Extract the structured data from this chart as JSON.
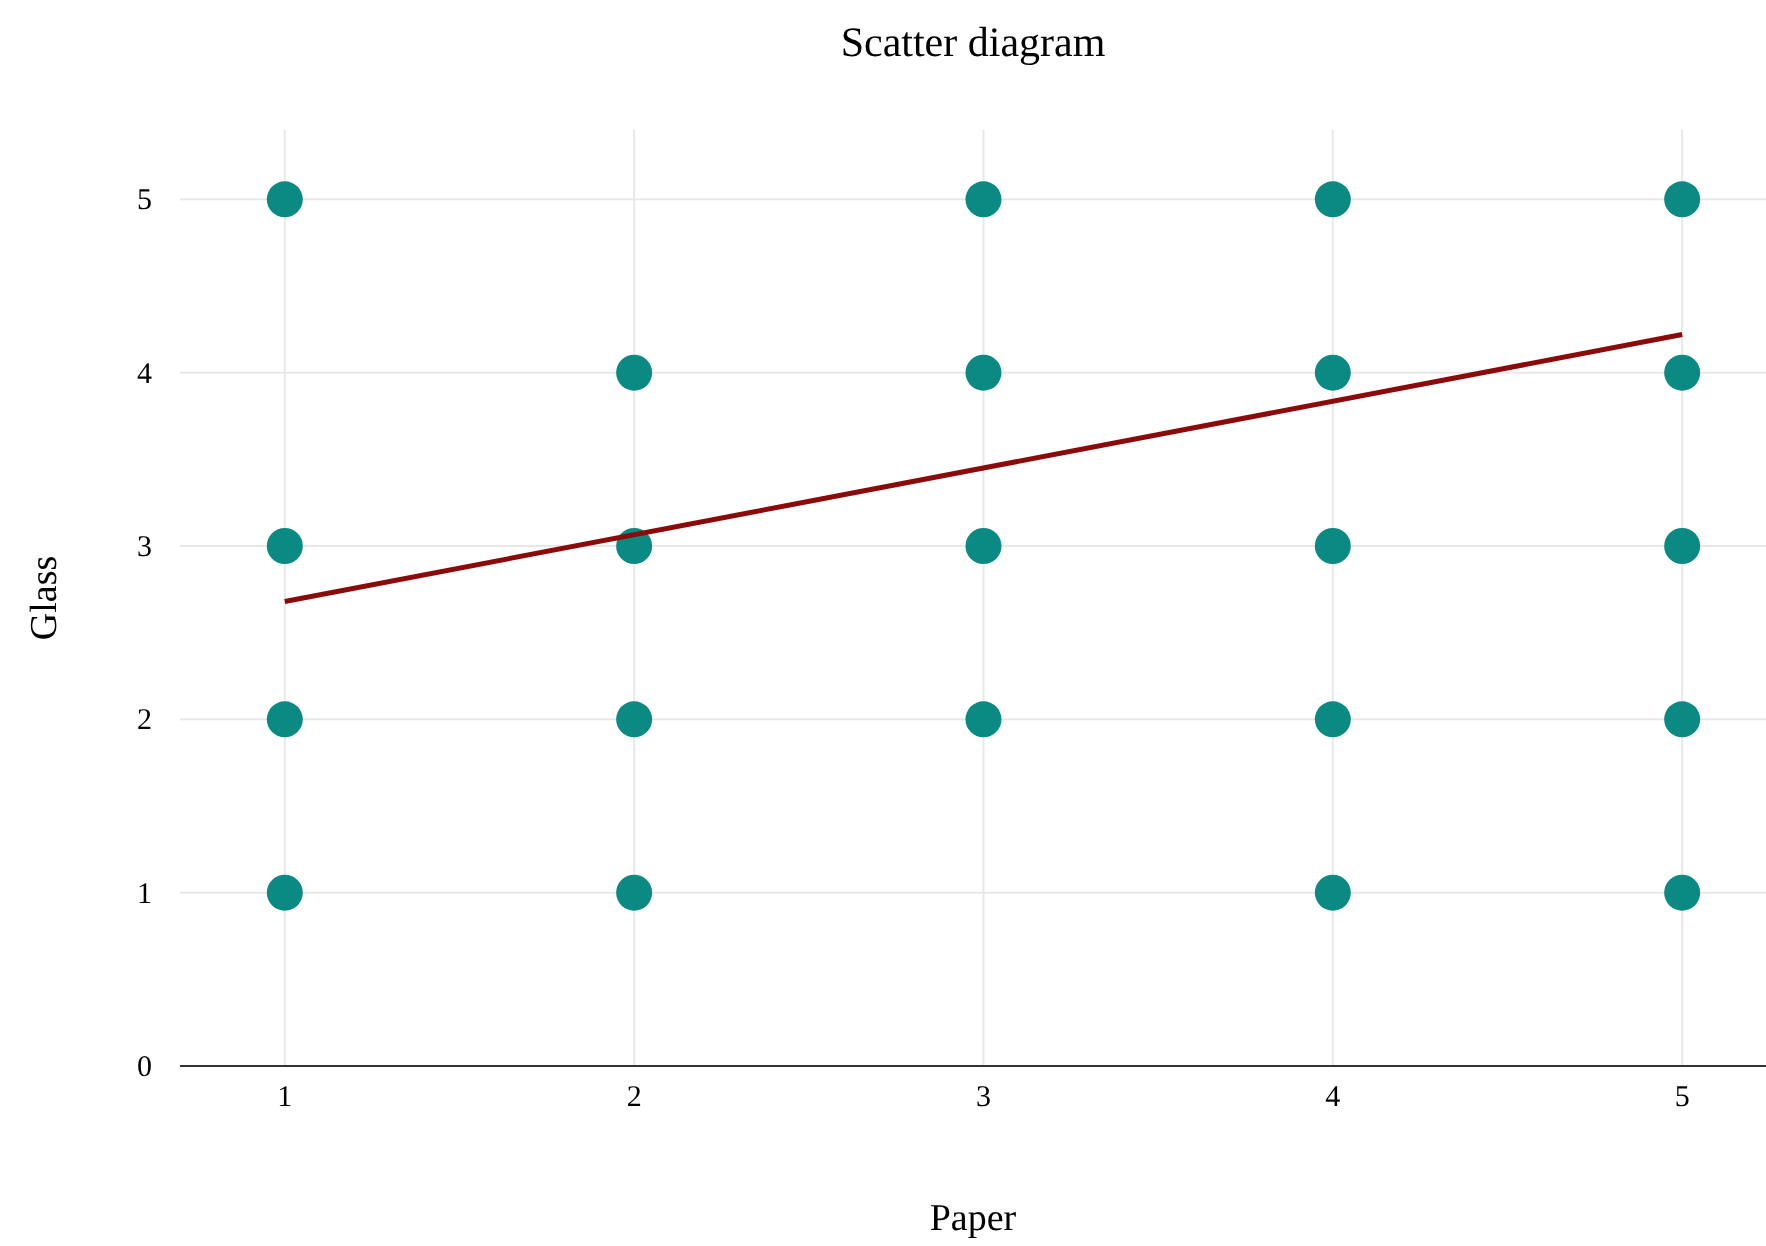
{
  "chart_data": {
    "type": "scatter",
    "title": "Scatter diagram",
    "xlabel": "Paper",
    "ylabel": "Glass",
    "series": [
      {
        "marker": "circle",
        "color": "#0b8a84",
        "x": [
          1,
          1,
          1,
          1,
          2,
          2,
          2,
          2,
          3,
          3,
          3,
          3,
          4,
          4,
          4,
          4,
          4,
          5,
          5,
          5,
          5,
          5
        ],
        "values": [
          5,
          3,
          2,
          1,
          4,
          3,
          2,
          1,
          5,
          4,
          3,
          2,
          5,
          4,
          3,
          2,
          1,
          5,
          4,
          3,
          2,
          1
        ]
      },
      {
        "type": "line",
        "color": "#8b0a0a",
        "x": [
          1,
          5
        ],
        "values": [
          2.68,
          4.22
        ]
      }
    ],
    "xlim": [
      0.7,
      5.24
    ],
    "xticks": [
      1,
      2,
      3,
      4,
      5
    ],
    "ylim": [
      0,
      5.4
    ],
    "yticks": [
      0,
      1,
      2,
      3,
      4,
      5
    ],
    "grid": true,
    "line_style": "solid"
  }
}
